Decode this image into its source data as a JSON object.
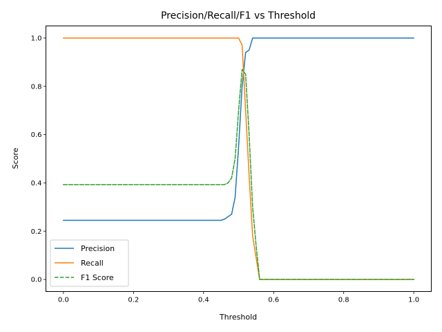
{
  "chart_data": {
    "type": "line",
    "title": "Precision/Recall/F1 vs Threshold",
    "xlabel": "Threshold",
    "ylabel": "Score",
    "xlim": [
      -0.05,
      1.05
    ],
    "ylim": [
      -0.05,
      1.05
    ],
    "xticks": [
      0.0,
      0.2,
      0.4,
      0.6,
      0.8,
      1.0
    ],
    "xtick_labels": [
      "0.0",
      "0.2",
      "0.4",
      "0.6",
      "0.8",
      "1.0"
    ],
    "yticks": [
      0.0,
      0.2,
      0.4,
      0.6,
      0.8,
      1.0
    ],
    "ytick_labels": [
      "0.0",
      "0.2",
      "0.4",
      "0.6",
      "0.8",
      "1.0"
    ],
    "grid": false,
    "legend_position": "lower-left",
    "series": [
      {
        "name": "Precision",
        "color": "#1f77b4",
        "dash": "solid",
        "x": [
          0.0,
          0.45,
          0.46,
          0.47,
          0.48,
          0.49,
          0.5,
          0.51,
          0.52,
          0.53,
          0.54,
          0.55,
          0.56,
          1.0
        ],
        "y": [
          0.245,
          0.245,
          0.25,
          0.26,
          0.27,
          0.34,
          0.55,
          0.8,
          0.94,
          0.95,
          1.0,
          1.0,
          1.0,
          1.0
        ]
      },
      {
        "name": "Recall",
        "color": "#ff7f0e",
        "dash": "solid",
        "x": [
          0.0,
          0.5,
          0.51,
          0.52,
          0.53,
          0.54,
          0.55,
          0.56,
          1.0
        ],
        "y": [
          1.0,
          1.0,
          0.97,
          0.7,
          0.43,
          0.18,
          0.09,
          0.0,
          0.0
        ]
      },
      {
        "name": "F1 Score",
        "color": "#2ca02c",
        "dash": "dashed",
        "x": [
          0.0,
          0.46,
          0.47,
          0.48,
          0.49,
          0.5,
          0.51,
          0.52,
          0.53,
          0.54,
          0.55,
          0.56,
          1.0
        ],
        "y": [
          0.393,
          0.393,
          0.4,
          0.42,
          0.5,
          0.7,
          0.87,
          0.85,
          0.6,
          0.3,
          0.14,
          0.0,
          0.0
        ]
      }
    ]
  }
}
